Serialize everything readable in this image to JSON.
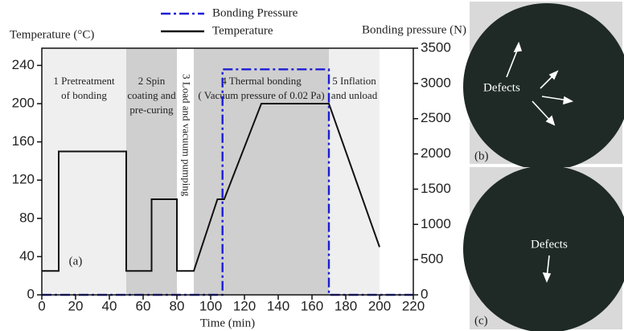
{
  "chart_data": {
    "type": "line",
    "xlabel": "Time (min)",
    "ylabel": "Temperature (°C)",
    "y2label": "Bonding pressure (N)",
    "xlim": [
      0,
      220
    ],
    "ylim": [
      0,
      258
    ],
    "y2lim": [
      0,
      3500
    ],
    "xticks": [
      0,
      20,
      40,
      60,
      80,
      100,
      120,
      140,
      160,
      180,
      200,
      220
    ],
    "yticks": [
      0,
      40,
      80,
      120,
      160,
      200,
      240
    ],
    "y2ticks": [
      0,
      500,
      1000,
      1500,
      2000,
      2500,
      3000,
      3500
    ],
    "phases": [
      {
        "start": 0,
        "end": 50,
        "color": "#efefef",
        "label": [
          "1 Pretreatment",
          "of bonding"
        ]
      },
      {
        "start": 50,
        "end": 80,
        "color": "#cfcfcf",
        "label": [
          "2 Spin",
          "coating and",
          "pre-curing"
        ]
      },
      {
        "start": 80,
        "end": 90,
        "color": "#ffffff",
        "label": [
          "3 Load and vacuum pumping"
        ]
      },
      {
        "start": 90,
        "end": 170,
        "color": "#cfcfcf",
        "label": [
          "4 Thermal bonding",
          "( Vacuum pressure of 0.02 Pa)"
        ]
      },
      {
        "start": 170,
        "end": 200,
        "color": "#efefef",
        "label": [
          "5 Inflation",
          "and unload"
        ]
      }
    ],
    "annotation": "(a)",
    "series": [
      {
        "name": "Bonding Pressure",
        "color": "#1c1cd6",
        "axis": "y2",
        "x": [
          0,
          107,
          107,
          170,
          170,
          220
        ],
        "values": [
          0,
          0,
          3200,
          3200,
          0,
          0
        ]
      },
      {
        "name": "Temperature",
        "color": "#111111",
        "x": [
          0,
          10,
          10,
          50,
          50,
          65,
          65,
          80,
          80,
          90,
          104,
          108,
          130,
          170,
          200
        ],
        "values": [
          25,
          25,
          150,
          150,
          25,
          25,
          100,
          100,
          25,
          25,
          100,
          100,
          200,
          200,
          50
        ]
      }
    ]
  },
  "images": [
    {
      "label": "(b)",
      "annotation": "Defects"
    },
    {
      "label": "(c)",
      "annotation": "Defects"
    }
  ]
}
